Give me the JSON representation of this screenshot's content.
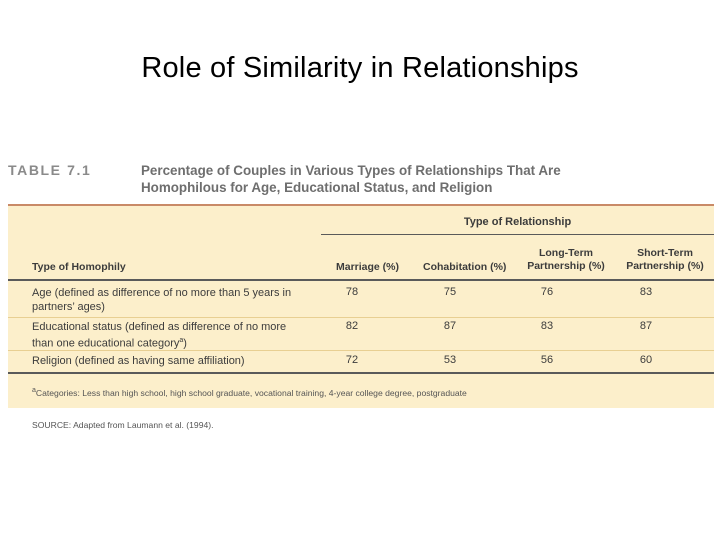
{
  "slide": {
    "title": "Role of Similarity in Relationships"
  },
  "table": {
    "number": "TABLE 7.1",
    "caption_line1": "Percentage of Couples in Various Types of Relationships That Are",
    "caption_line2": "Homophilous for Age, Educational Status, and Religion",
    "group_header": "Type of Relationship",
    "columns": {
      "homophily": "Type of Homophily",
      "marriage": "Marriage (%)",
      "cohabitation": "Cohabitation (%)",
      "long_term_1": "Long-Term",
      "long_term_2": "Partnership (%)",
      "short_term_1": "Short-Term",
      "short_term_2": "Partnership (%)"
    },
    "rows": [
      {
        "label_1": "Age (defined as difference of no more than 5 years in",
        "label_2": "partners’ ages)",
        "marriage": "78",
        "cohabitation": "75",
        "long_term": "76",
        "short_term": "83"
      },
      {
        "label_1": "Educational status (defined as difference of no more",
        "label_2": "than one educational category",
        "label_sup": "a",
        "label_end": ")",
        "marriage": "82",
        "cohabitation": "87",
        "long_term": "83",
        "short_term": "87"
      },
      {
        "label_1": "Religion (defined as having same affiliation)",
        "marriage": "72",
        "cohabitation": "53",
        "long_term": "56",
        "short_term": "60"
      }
    ],
    "footnote_mark": "a",
    "footnote": "Categories: Less than high school, high school graduate, vocational training, 4-year college degree, postgraduate",
    "source": "SOURCE: Adapted from Laumann et al. (1994)."
  }
}
